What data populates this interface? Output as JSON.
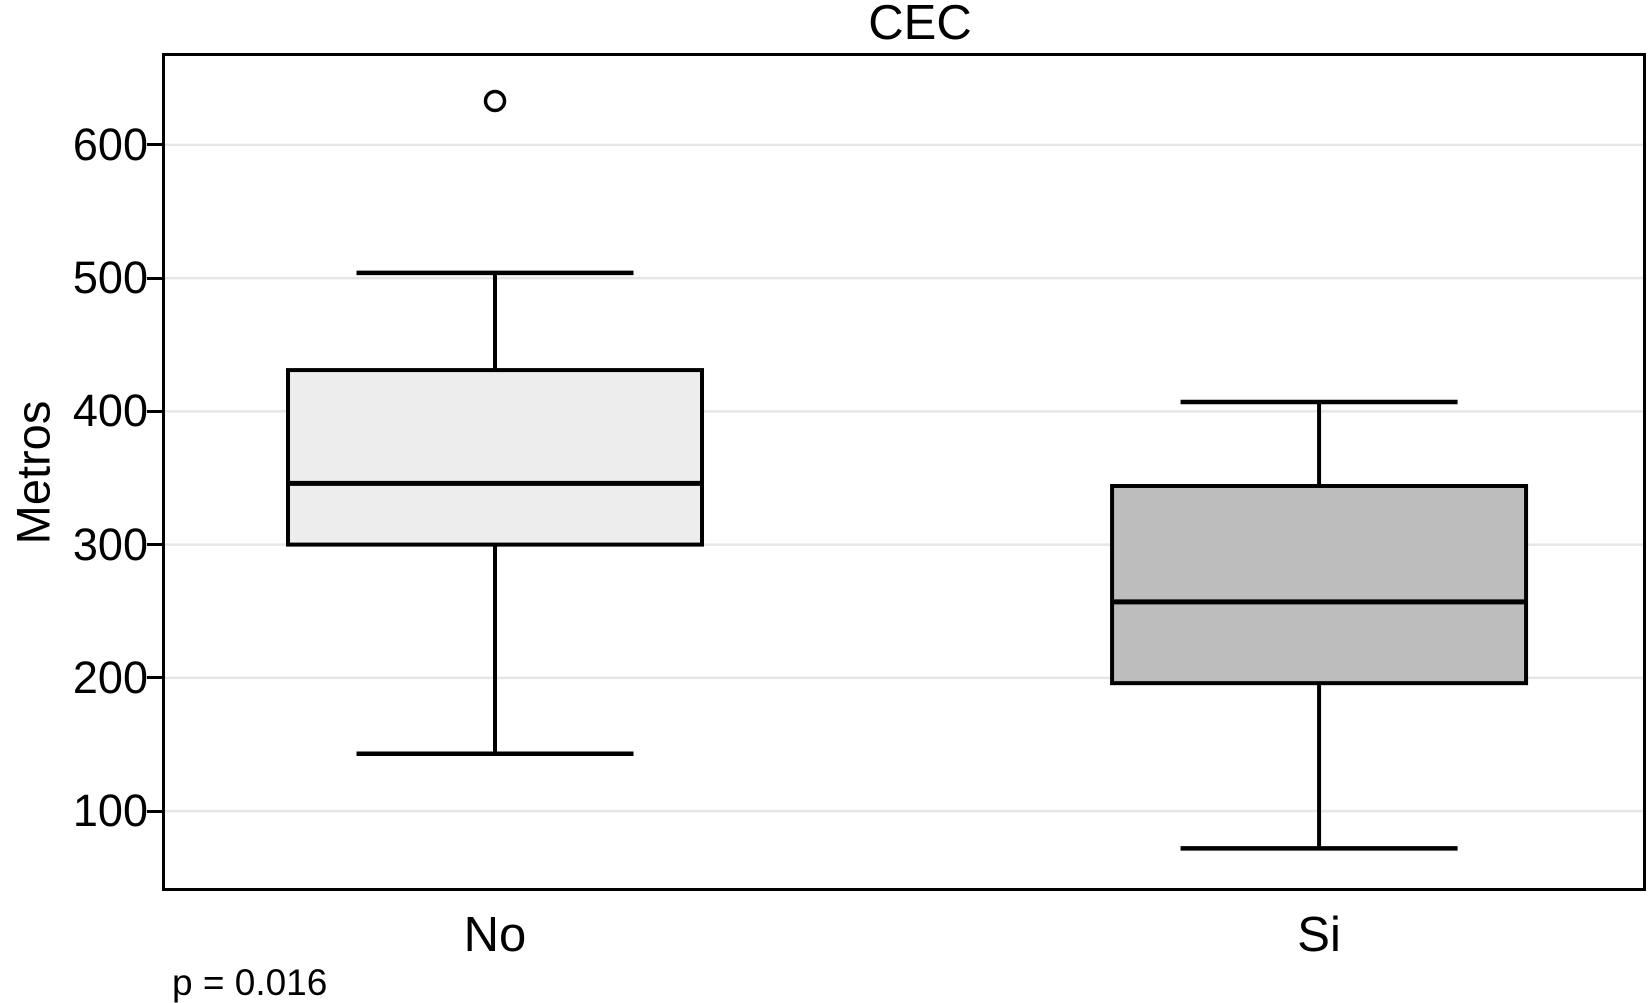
{
  "chart_data": {
    "type": "boxplot",
    "title": "CEC",
    "ylabel": "Metros",
    "xlabel": "",
    "categories": [
      "No",
      "Si"
    ],
    "boxes": [
      {
        "category": "No",
        "min": 143,
        "q1": 300,
        "median": 346,
        "q3": 431,
        "max": 504,
        "outliers": [
          633
        ],
        "fill": "#ededed"
      },
      {
        "category": "Si",
        "min": 72,
        "q1": 196,
        "median": 257,
        "q3": 344,
        "max": 407,
        "outliers": [],
        "fill": "#bdbdbd"
      }
    ],
    "yticks": [
      100,
      200,
      300,
      400,
      500,
      600
    ],
    "ylim": [
      40,
      669
    ],
    "grid": true,
    "legend_position": "none",
    "annotation": "p = 0.016",
    "colors": {
      "line": "#000000",
      "gridline": "#e6e6e6",
      "background": "#ffffff",
      "outlier_fill": "#ffffff"
    }
  }
}
